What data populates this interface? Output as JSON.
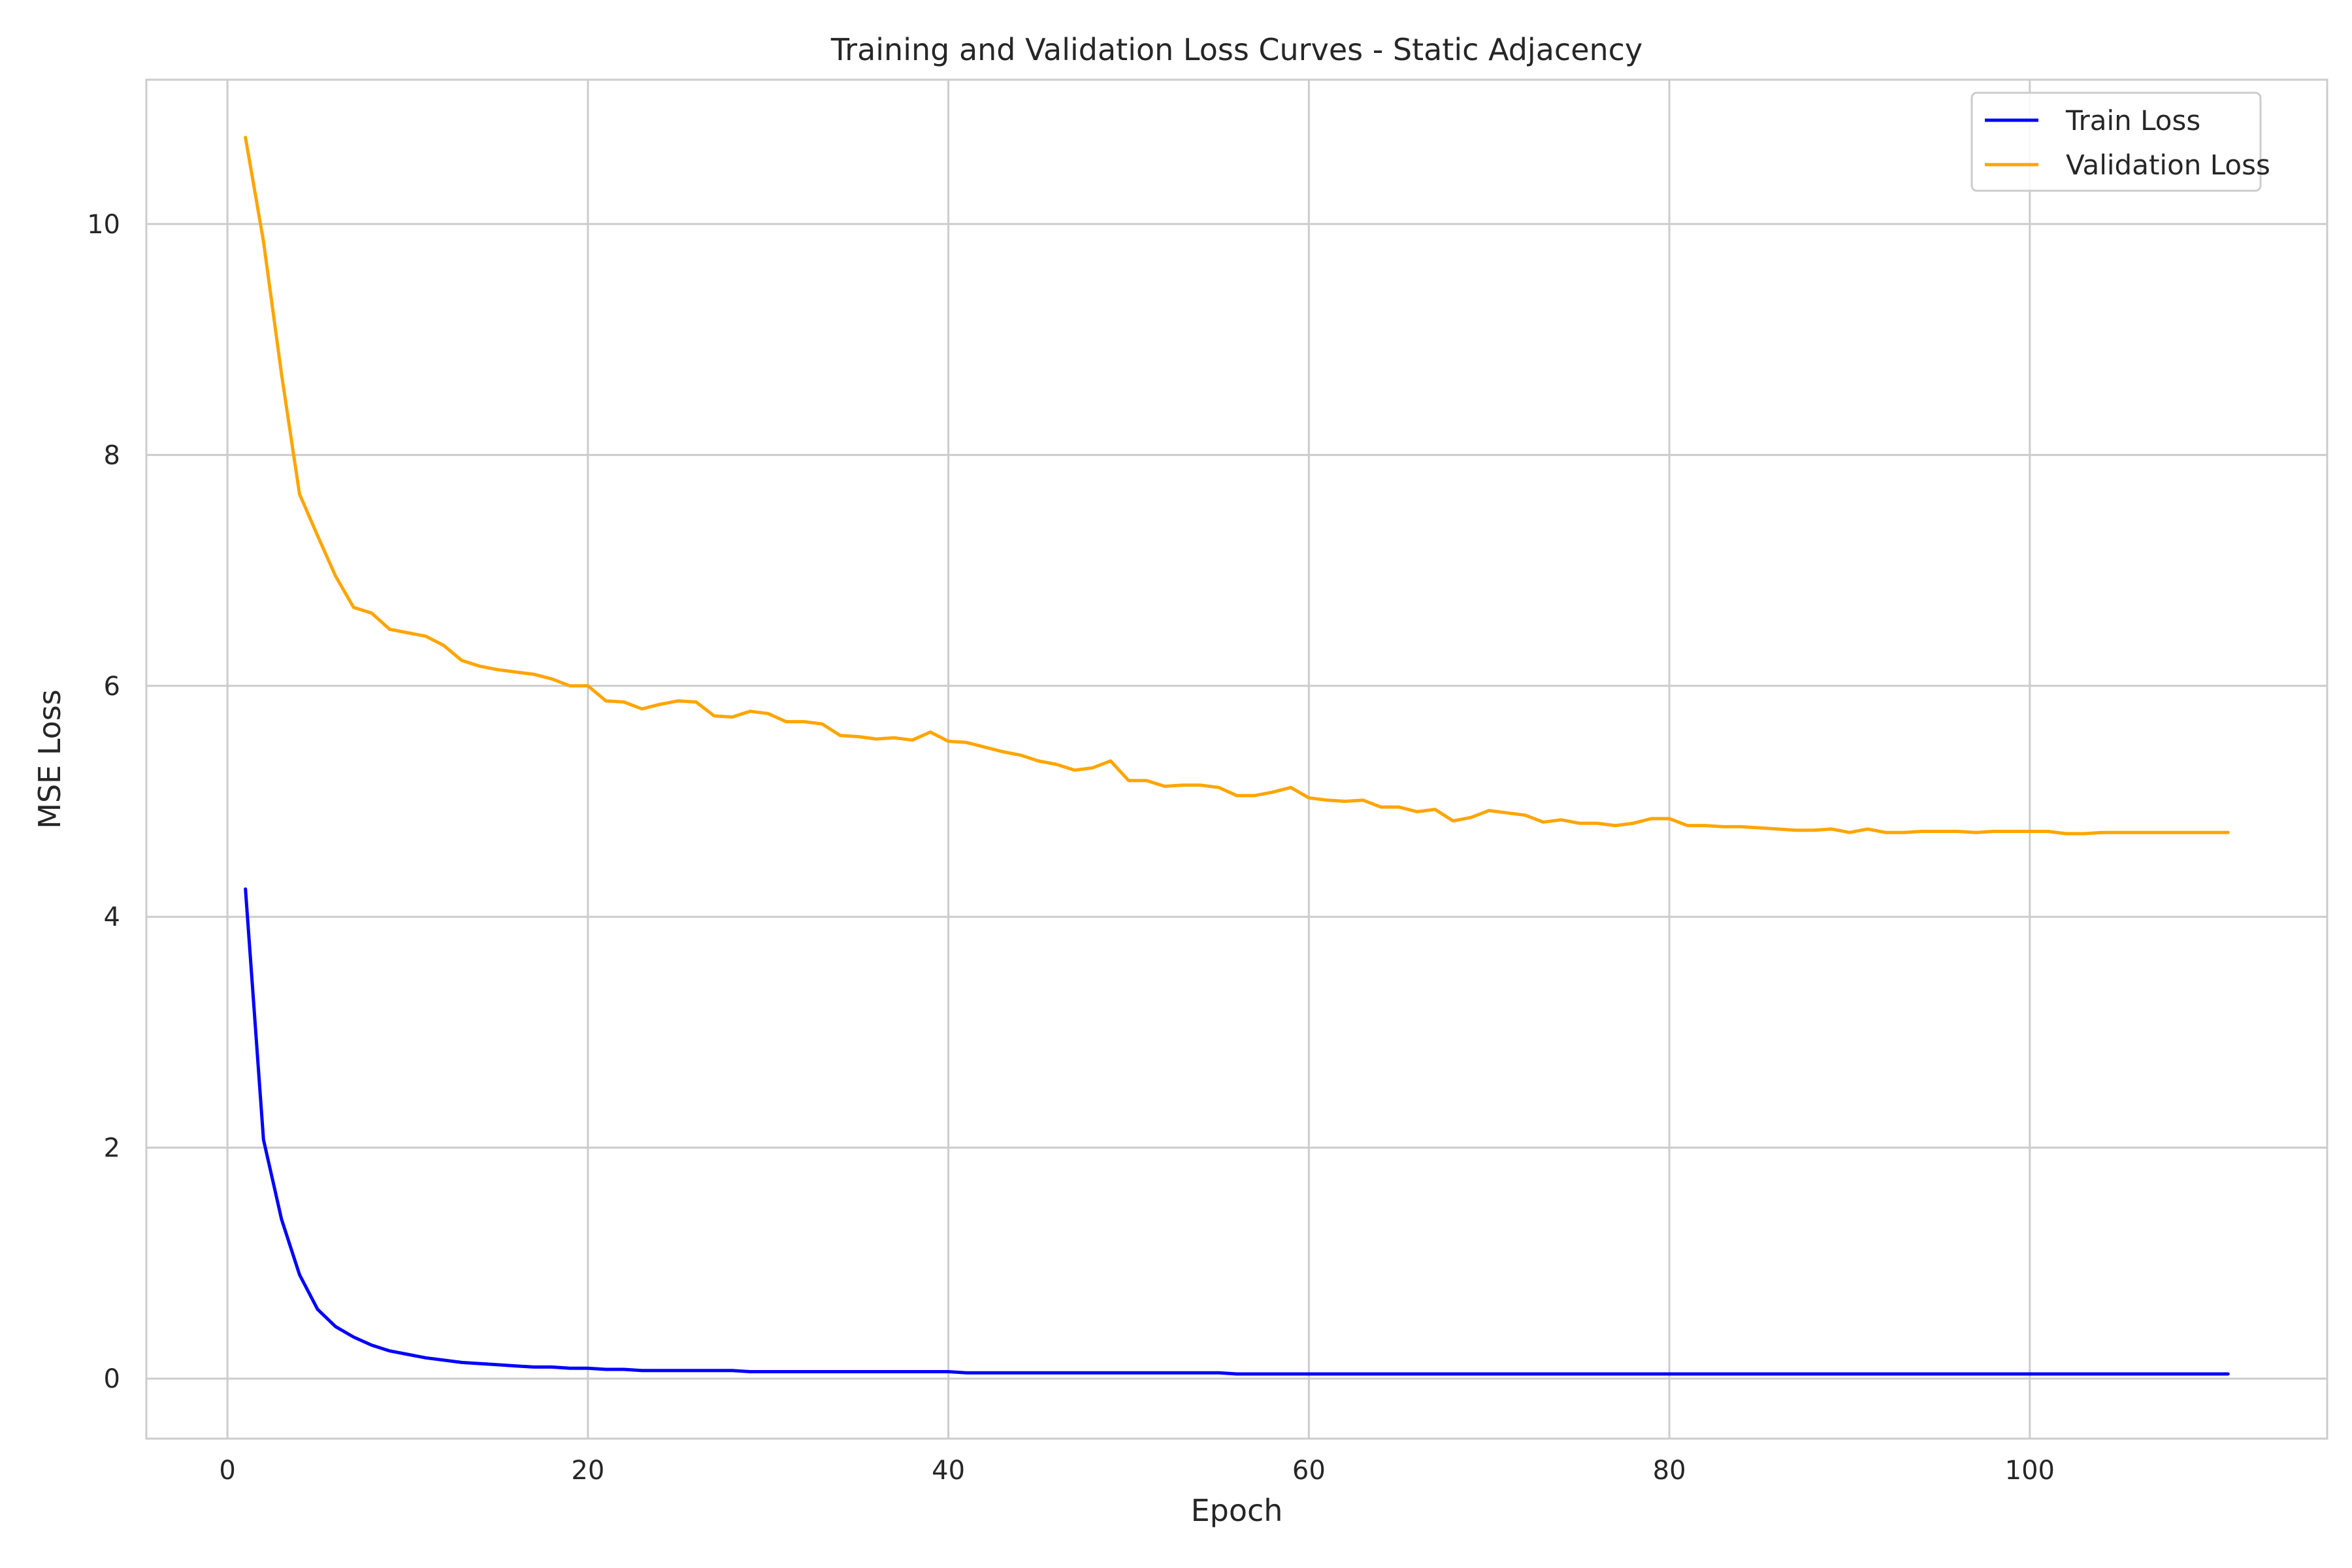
{
  "chart_data": {
    "type": "line",
    "title": "Training and Validation Loss Curves - Static Adjacency",
    "xlabel": "Epoch",
    "ylabel": "MSE Loss",
    "xlim": [
      -4.5,
      116.5
    ],
    "ylim": [
      -0.52,
      11.25
    ],
    "xticks": [
      0,
      20,
      40,
      60,
      80,
      100
    ],
    "yticks": [
      0,
      2,
      4,
      6,
      8,
      10
    ],
    "grid": true,
    "legend_position": "top-right",
    "x_start": 1,
    "series": [
      {
        "name": "Train Loss",
        "color": "#0000ff",
        "values": [
          4.24,
          2.07,
          1.38,
          0.9,
          0.6,
          0.45,
          0.36,
          0.29,
          0.24,
          0.21,
          0.18,
          0.16,
          0.14,
          0.13,
          0.12,
          0.11,
          0.1,
          0.1,
          0.09,
          0.09,
          0.08,
          0.08,
          0.07,
          0.07,
          0.07,
          0.07,
          0.07,
          0.07,
          0.06,
          0.06,
          0.06,
          0.06,
          0.06,
          0.06,
          0.06,
          0.06,
          0.06,
          0.06,
          0.06,
          0.06,
          0.05,
          0.05,
          0.05,
          0.05,
          0.05,
          0.05,
          0.05,
          0.05,
          0.05,
          0.05,
          0.05,
          0.05,
          0.05,
          0.05,
          0.05,
          0.04,
          0.04,
          0.04,
          0.04,
          0.04,
          0.04,
          0.04,
          0.04,
          0.04,
          0.04,
          0.04,
          0.04,
          0.04,
          0.04,
          0.04,
          0.04,
          0.04,
          0.04,
          0.04,
          0.04,
          0.04,
          0.04,
          0.04,
          0.04,
          0.04,
          0.04,
          0.04,
          0.04,
          0.04,
          0.04,
          0.04,
          0.04,
          0.04,
          0.04,
          0.04,
          0.04,
          0.04,
          0.04,
          0.04,
          0.04,
          0.04,
          0.04,
          0.04,
          0.04,
          0.04,
          0.04,
          0.04,
          0.04,
          0.04,
          0.04,
          0.04,
          0.04,
          0.04,
          0.04,
          0.04,
          0.04
        ]
      },
      {
        "name": "Validation Loss",
        "color": "#ffa500",
        "values": [
          10.75,
          9.85,
          8.7,
          7.66,
          7.3,
          6.95,
          6.68,
          6.63,
          6.49,
          6.46,
          6.43,
          6.35,
          6.22,
          6.17,
          6.14,
          6.12,
          6.1,
          6.06,
          6.0,
          6.0,
          5.87,
          5.86,
          5.8,
          5.84,
          5.87,
          5.86,
          5.74,
          5.73,
          5.78,
          5.76,
          5.69,
          5.69,
          5.67,
          5.57,
          5.56,
          5.54,
          5.55,
          5.53,
          5.6,
          5.52,
          5.51,
          5.47,
          5.43,
          5.4,
          5.35,
          5.32,
          5.27,
          5.29,
          5.35,
          5.18,
          5.18,
          5.13,
          5.14,
          5.14,
          5.12,
          5.05,
          5.05,
          5.08,
          5.12,
          5.03,
          5.01,
          5.0,
          5.01,
          4.95,
          4.95,
          4.91,
          4.93,
          4.83,
          4.86,
          4.92,
          4.9,
          4.88,
          4.82,
          4.84,
          4.81,
          4.81,
          4.79,
          4.81,
          4.85,
          4.85,
          4.79,
          4.79,
          4.78,
          4.78,
          4.77,
          4.76,
          4.75,
          4.75,
          4.76,
          4.73,
          4.76,
          4.73,
          4.73,
          4.74,
          4.74,
          4.74,
          4.73,
          4.74,
          4.74,
          4.74,
          4.74,
          4.72,
          4.72,
          4.73,
          4.73,
          4.73,
          4.73,
          4.73,
          4.73,
          4.73,
          4.73
        ]
      }
    ]
  }
}
